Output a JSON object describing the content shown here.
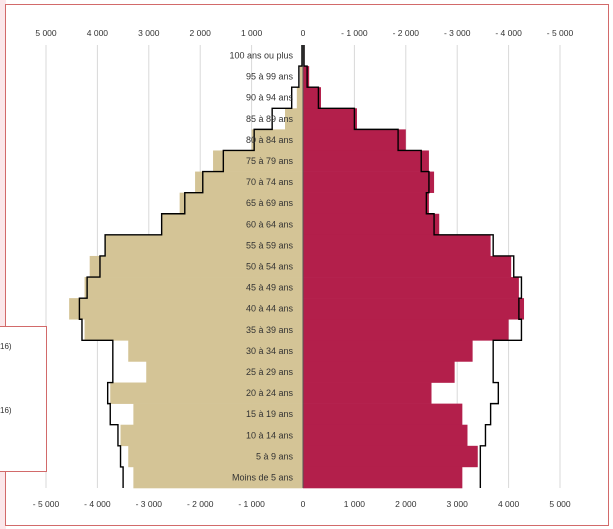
{
  "chart_data": {
    "type": "bar",
    "subtype": "population-pyramid",
    "categories": [
      "100 ans ou plus",
      "95 à 99 ans",
      "90 à 94 ans",
      "85 à 89 ans",
      "80 à 84 ans",
      "75 à 79 ans",
      "70 à 74 ans",
      "65 à 69 ans",
      "60 à 64 ans",
      "55 à 59 ans",
      "50 à 54 ans",
      "45 à 49 ans",
      "40 à 44 ans",
      "35 à 39 ans",
      "30 à 34 ans",
      "25 à 29 ans",
      "20 à 24 ans",
      "15 à 19 ans",
      "10 à 14 ans",
      "5 à 9 ans",
      "Moins de 5 ans"
    ],
    "series": [
      {
        "side": "left",
        "kind": "bars",
        "color": "#d4c496",
        "values": [
          20,
          60,
          120,
          350,
          1000,
          1750,
          2100,
          2400,
          2750,
          3850,
          4150,
          4250,
          4550,
          4250,
          3400,
          3050,
          3750,
          3300,
          3550,
          3400,
          3300
        ]
      },
      {
        "side": "left",
        "kind": "outline",
        "color": "#000000",
        "values": [
          20,
          80,
          220,
          600,
          950,
          1550,
          1950,
          2300,
          2750,
          3850,
          3950,
          4200,
          4350,
          4300,
          3700,
          3700,
          3800,
          3750,
          3600,
          3550,
          3500
        ]
      },
      {
        "side": "right",
        "kind": "bars",
        "color": "#b31f4b",
        "values": [
          30,
          120,
          350,
          1050,
          2000,
          2450,
          2550,
          2450,
          2650,
          3650,
          4050,
          4200,
          4300,
          4000,
          3300,
          2950,
          2500,
          3100,
          3200,
          3400,
          3100
        ]
      },
      {
        "side": "right",
        "kind": "outline",
        "color": "#000000",
        "values": [
          20,
          80,
          300,
          1000,
          1850,
          2300,
          2450,
          2400,
          2550,
          3700,
          4100,
          4250,
          4200,
          4250,
          3700,
          3700,
          3800,
          3650,
          3550,
          3450,
          3450
        ]
      }
    ],
    "xlim": [
      -5000,
      5000
    ],
    "top_axis_ticks": [
      "5 000",
      "4 000",
      "3 000",
      "2 000",
      "1 000",
      "0",
      "- 1 000",
      "- 2 000",
      "- 3 000",
      "- 4 000",
      "- 5 000"
    ],
    "bottom_axis_ticks": [
      "- 5 000",
      "- 4 000",
      "- 3 000",
      "- 2 000",
      "- 1 000",
      "0",
      "1 000",
      "2 000",
      "3 000",
      "4 000",
      "5 000"
    ],
    "grid": true
  },
  "legend": {
    "items": [
      "16)",
      "16)"
    ]
  }
}
